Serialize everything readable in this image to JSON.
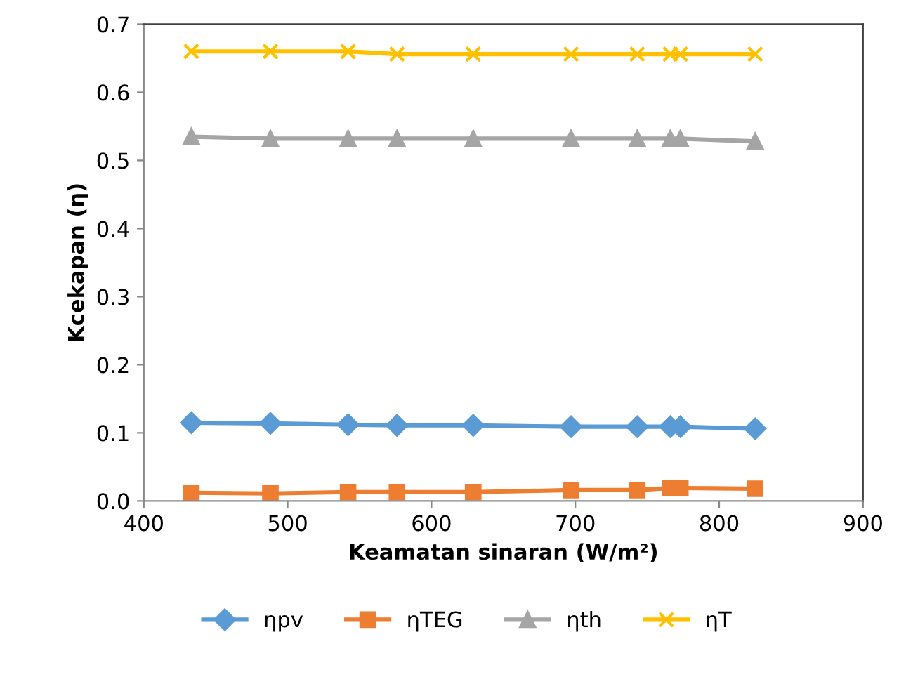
{
  "chart_data": {
    "type": "line",
    "xlabel": "Keamatan sinaran (W/m²)",
    "ylabel": "Kcekapan (η)",
    "x": [
      433,
      488,
      542,
      576,
      629,
      697,
      743,
      766,
      773,
      825
    ],
    "series": [
      {
        "name": "ηpv",
        "color": "#5b9bd5",
        "marker": "diamond",
        "values": [
          0.115,
          0.114,
          0.112,
          0.111,
          0.111,
          0.109,
          0.109,
          0.109,
          0.109,
          0.106
        ]
      },
      {
        "name": "ηTEG",
        "color": "#ed7d31",
        "marker": "square",
        "values": [
          0.012,
          0.011,
          0.013,
          0.013,
          0.013,
          0.016,
          0.016,
          0.019,
          0.019,
          0.018
        ]
      },
      {
        "name": "ηth",
        "color": "#a5a5a5",
        "marker": "triangle",
        "values": [
          0.535,
          0.532,
          0.532,
          0.532,
          0.532,
          0.532,
          0.532,
          0.532,
          0.532,
          0.528
        ]
      },
      {
        "name": "ηT",
        "color": "#ffc000",
        "marker": "cross",
        "values": [
          0.66,
          0.66,
          0.66,
          0.656,
          0.656,
          0.656,
          0.656,
          0.656,
          0.656,
          0.656
        ]
      }
    ],
    "xlim": [
      400,
      900
    ],
    "xticks": [
      400,
      500,
      600,
      700,
      800,
      900
    ],
    "ylim": [
      0,
      0.7
    ],
    "yticks": [
      {
        "value": 0,
        "label": "0.0"
      },
      {
        "value": 0.1,
        "label": "0.1"
      },
      {
        "value": 0.2,
        "label": "0.2"
      },
      {
        "value": 0.3,
        "label": "0.3"
      },
      {
        "value": 0.4,
        "label": "0.4"
      },
      {
        "value": 0.5,
        "label": "0.5"
      },
      {
        "value": 0.6,
        "label": "0.6"
      },
      {
        "value": 0.7,
        "label": "0.7"
      }
    ],
    "grid": false,
    "legend": "bottom",
    "line_style": "solid"
  }
}
